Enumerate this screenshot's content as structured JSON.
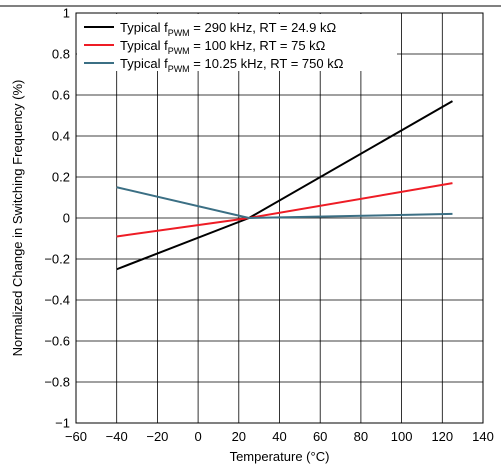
{
  "chart_data": {
    "type": "line",
    "xlabel": "Temperature (°C)",
    "ylabel": "Normalized Change in Switching Frequency (%)",
    "xlim": [
      -60,
      140
    ],
    "ylim": [
      -1,
      1
    ],
    "xticks": [
      -60,
      -40,
      -20,
      0,
      20,
      40,
      60,
      80,
      100,
      120,
      140
    ],
    "yticks": [
      -1,
      -0.8,
      -0.6,
      -0.4,
      -0.2,
      0,
      0.2,
      0.4,
      0.6,
      0.8,
      1
    ],
    "grid": true,
    "legend_position": "top-left",
    "series": [
      {
        "legend_prefix": "Typical f",
        "legend_subscript": "PWM",
        "legend_suffix": " = 290 kHz, RT = 24.9 kΩ",
        "color": "#000000",
        "x": [
          -40,
          25,
          125
        ],
        "y": [
          -0.25,
          0.0,
          0.57
        ]
      },
      {
        "legend_prefix": "Typical f",
        "legend_subscript": "PWM",
        "legend_suffix": " = 100 kHz, RT = 75 kΩ",
        "color": "#ee1c25",
        "x": [
          -40,
          25,
          125
        ],
        "y": [
          -0.09,
          0.0,
          0.17
        ]
      },
      {
        "legend_prefix": "Typical f",
        "legend_subscript": "PWM",
        "legend_suffix": " = 10.25 kHz, RT = 750 kΩ",
        "color": "#3b6f84",
        "x": [
          -40,
          25,
          125
        ],
        "y": [
          0.15,
          0.0,
          0.02
        ]
      }
    ]
  }
}
